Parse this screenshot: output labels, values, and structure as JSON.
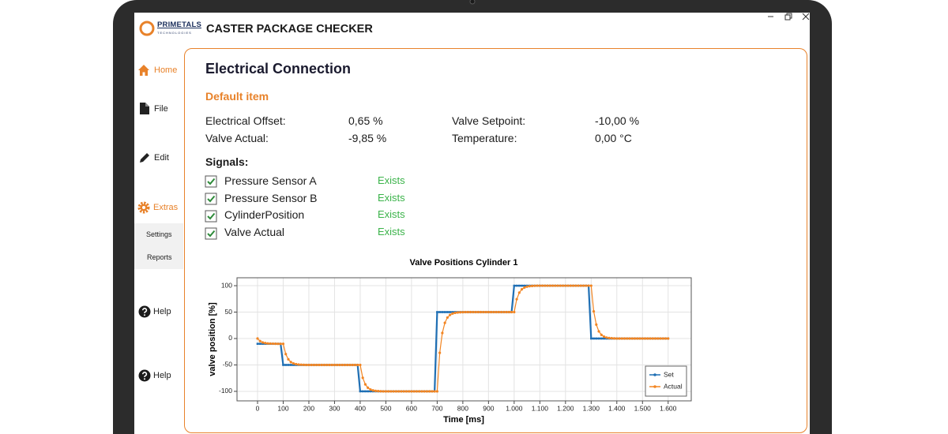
{
  "app": {
    "logo": "PRIMETALS",
    "logo_sub": "TECHNOLOGIES",
    "title": "CASTER PACKAGE CHECKER"
  },
  "sidebar": {
    "items": [
      {
        "label": "Home"
      },
      {
        "label": "File"
      },
      {
        "label": "Edit"
      },
      {
        "label": "Extras"
      },
      {
        "label": "Settings"
      },
      {
        "label": "Reports"
      },
      {
        "label": "Help"
      },
      {
        "label": "Help"
      }
    ]
  },
  "panel": {
    "title": "Electrical Connection",
    "subtitle": "Default item",
    "fields": [
      {
        "label": "Electrical Offset:",
        "value": "0,65 %"
      },
      {
        "label": "Valve Setpoint:",
        "value": "-10,00 %"
      },
      {
        "label": "Valve Actual:",
        "value": "-9,85 %"
      },
      {
        "label": "Temperature:",
        "value": "0,00 °C"
      }
    ],
    "signals_title": "Signals:",
    "signals": [
      {
        "name": "Pressure Sensor A",
        "status": "Exists",
        "checked": true
      },
      {
        "name": "Pressure Sensor B",
        "status": "Exists",
        "checked": true
      },
      {
        "name": "CylinderPosition",
        "status": "Exists",
        "checked": true
      },
      {
        "name": "Valve Actual",
        "status": "Exists",
        "checked": true
      }
    ]
  },
  "chart_data": {
    "type": "line",
    "title": "Valve Positions Cylinder 1",
    "x_label": "Time [ms]",
    "y_label": "valve position [%]",
    "grid": true,
    "legend": "lower right",
    "xlim": [
      -80,
      1690
    ],
    "ylim": [
      -118,
      115
    ],
    "xticks": [
      0,
      100,
      200,
      300,
      400,
      500,
      600,
      700,
      800,
      900,
      {
        "value": 1000,
        "label": "1.000"
      },
      {
        "value": 1100,
        "label": "1.100"
      },
      {
        "value": 1200,
        "label": "1.200"
      },
      {
        "value": 1300,
        "label": "1.300"
      },
      {
        "value": 1400,
        "label": "1.400"
      },
      {
        "value": 1500,
        "label": "1.500"
      },
      {
        "value": 1600,
        "label": "1.600"
      }
    ],
    "yticks": [
      -100,
      -50,
      0,
      50,
      100
    ],
    "x": [
      0,
      10,
      20,
      30,
      40,
      50,
      60,
      70,
      80,
      90,
      100,
      110,
      120,
      130,
      140,
      150,
      160,
      170,
      180,
      190,
      200,
      210,
      220,
      230,
      240,
      250,
      260,
      270,
      280,
      290,
      300,
      310,
      320,
      330,
      340,
      350,
      360,
      370,
      380,
      390,
      400,
      410,
      420,
      430,
      440,
      450,
      460,
      470,
      480,
      490,
      500,
      510,
      520,
      530,
      540,
      550,
      560,
      570,
      580,
      590,
      600,
      610,
      620,
      630,
      640,
      650,
      660,
      670,
      680,
      690,
      700,
      710,
      720,
      730,
      740,
      750,
      760,
      770,
      780,
      790,
      800,
      810,
      820,
      830,
      840,
      850,
      860,
      870,
      880,
      890,
      900,
      910,
      920,
      930,
      940,
      950,
      960,
      970,
      980,
      990,
      1000,
      1010,
      1020,
      1030,
      1040,
      1050,
      1060,
      1070,
      1080,
      1090,
      1100,
      1110,
      1120,
      1130,
      1140,
      1150,
      1160,
      1170,
      1180,
      1190,
      1200,
      1210,
      1220,
      1230,
      1240,
      1250,
      1260,
      1270,
      1280,
      1290,
      1300,
      1310,
      1320,
      1330,
      1340,
      1350,
      1360,
      1370,
      1380,
      1390,
      1400,
      1410,
      1420,
      1430,
      1440,
      1450,
      1460,
      1470,
      1480,
      1490,
      1500,
      1510,
      1520,
      1530,
      1540,
      1550,
      1560,
      1570,
      1580,
      1590,
      1600
    ],
    "series": [
      {
        "name": "Set",
        "color": "#1f6fb4",
        "values": [
          -10,
          -10,
          -10,
          -10,
          -10,
          -10,
          -10,
          -10,
          -10,
          -10,
          -50,
          -50,
          -50,
          -50,
          -50,
          -50,
          -50,
          -50,
          -50,
          -50,
          -50,
          -50,
          -50,
          -50,
          -50,
          -50,
          -50,
          -50,
          -50,
          -50,
          -50,
          -50,
          -50,
          -50,
          -50,
          -50,
          -50,
          -50,
          -50,
          -50,
          -100,
          -100,
          -100,
          -100,
          -100,
          -100,
          -100,
          -100,
          -100,
          -100,
          -100,
          -100,
          -100,
          -100,
          -100,
          -100,
          -100,
          -100,
          -100,
          -100,
          -100,
          -100,
          -100,
          -100,
          -100,
          -100,
          -100,
          -100,
          -100,
          -100,
          50,
          50,
          50,
          50,
          50,
          50,
          50,
          50,
          50,
          50,
          50,
          50,
          50,
          50,
          50,
          50,
          50,
          50,
          50,
          50,
          50,
          50,
          50,
          50,
          50,
          50,
          50,
          50,
          50,
          50,
          100,
          100,
          100,
          100,
          100,
          100,
          100,
          100,
          100,
          100,
          100,
          100,
          100,
          100,
          100,
          100,
          100,
          100,
          100,
          100,
          100,
          100,
          100,
          100,
          100,
          100,
          100,
          100,
          100,
          100,
          0,
          0,
          0,
          0,
          0,
          0,
          0,
          0,
          0,
          0,
          0,
          0,
          0,
          0,
          0,
          0,
          0,
          0,
          0,
          0,
          0,
          0,
          0,
          0,
          0,
          0,
          0,
          0,
          0,
          0,
          0
        ]
      },
      {
        "name": "Actual",
        "color": "#f28522",
        "values": [
          0,
          -4.9,
          -7.4,
          -8.6,
          -9.3,
          -9.6,
          -9.8,
          -9.9,
          -10,
          -10,
          -10,
          -29.5,
          -39.4,
          -44.6,
          -47.2,
          -48.6,
          -49.3,
          -49.6,
          -49.8,
          -50,
          -50,
          -50,
          -50,
          -50,
          -50,
          -50,
          -50,
          -50,
          -50,
          -50,
          -50,
          -50,
          -50,
          -50,
          -50,
          -50,
          -50,
          -50,
          -50,
          -50,
          -50,
          -74.4,
          -86.8,
          -93.2,
          -96.5,
          -98.2,
          -99.1,
          -99.5,
          -99.8,
          -100,
          -100,
          -100,
          -100,
          -100,
          -100,
          -100,
          -100,
          -100,
          -100,
          -100,
          -100,
          -100,
          -100,
          -100,
          -100,
          -100,
          -100,
          -100,
          -100,
          -100,
          -100,
          -27,
          10.4,
          29.7,
          39.7,
          44.6,
          47.3,
          48.6,
          49.3,
          49.6,
          49.8,
          50,
          50,
          50,
          50,
          50,
          50,
          50,
          50,
          50,
          50,
          50,
          50,
          50,
          50,
          50,
          50,
          50,
          50,
          50,
          50,
          74.4,
          86.8,
          93.2,
          96.5,
          98.2,
          99.1,
          99.5,
          99.8,
          100,
          100,
          100,
          100,
          100,
          100,
          100,
          100,
          100,
          100,
          100,
          100,
          100,
          100,
          100,
          100,
          100,
          100,
          100,
          100,
          100,
          100,
          51.3,
          26.4,
          13.5,
          6.9,
          3.6,
          1.8,
          0.9,
          0.5,
          0.2,
          0,
          0,
          0,
          0,
          0,
          0,
          0,
          0,
          0,
          0,
          0,
          0,
          0,
          0,
          0,
          0,
          0,
          0,
          0,
          0,
          0
        ]
      }
    ]
  }
}
